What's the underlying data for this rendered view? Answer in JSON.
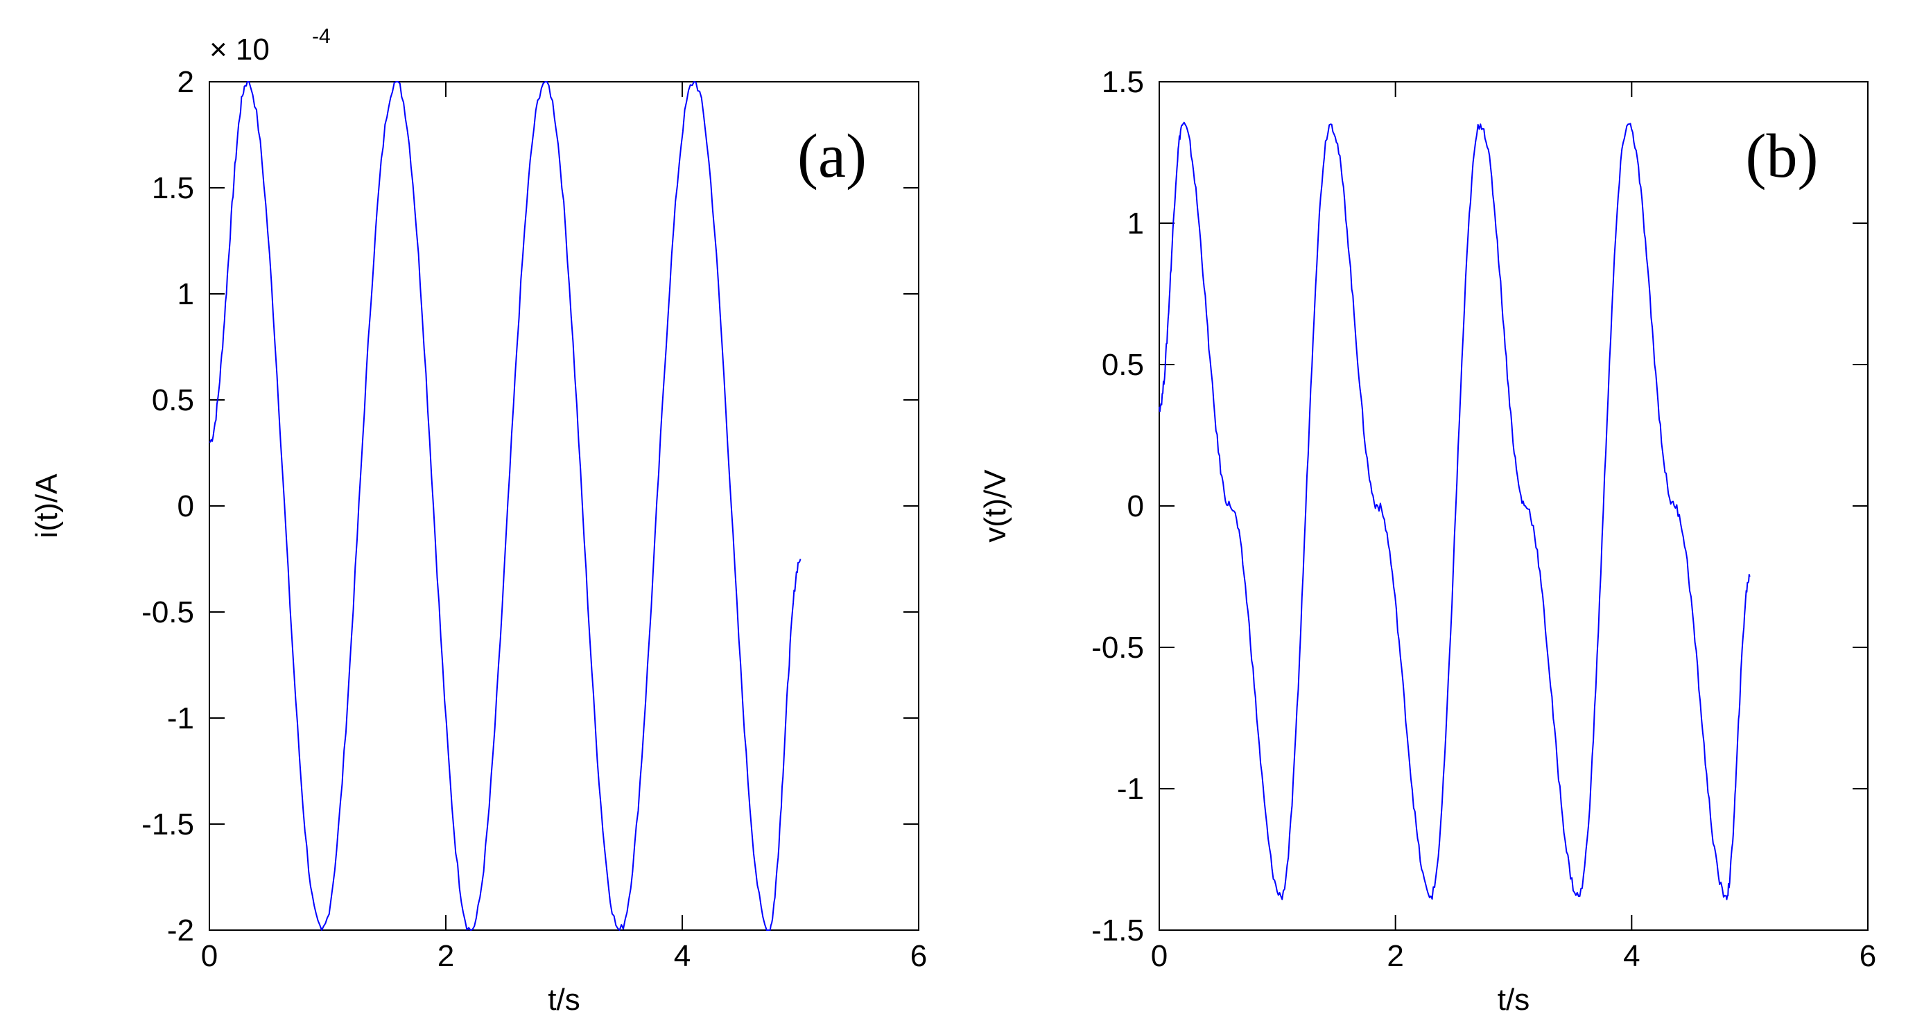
{
  "chart_data": [
    {
      "type": "line",
      "panel_label": "(a)",
      "multiplier": "× 10",
      "multiplier_exponent": "-4",
      "xlabel": "t/s",
      "ylabel": "i(t)/A",
      "xlim": [
        0,
        6
      ],
      "ylim": [
        -2,
        2
      ],
      "x_ticks": [
        0,
        2,
        4,
        6
      ],
      "x_tick_labels": [
        "0",
        "2",
        "4",
        "6"
      ],
      "y_ticks": [
        -2,
        -1.5,
        -1,
        -0.5,
        0,
        0.5,
        1,
        1.5,
        2
      ],
      "y_tick_labels": [
        "-2",
        "-1.5",
        "-1",
        "-0.5",
        "0",
        "0.5",
        "1",
        "1.5",
        "2"
      ],
      "grid": false,
      "series": [
        {
          "color": "#0000ff",
          "x": [
            0,
            0.32,
            0.95,
            1.58,
            2.21,
            2.84,
            3.47,
            4.1,
            4.73,
            5.0
          ],
          "y": [
            0.3,
            2.0,
            -2.0,
            2.0,
            -2.0,
            2.0,
            -2.0,
            2.0,
            -2.0,
            -0.25
          ]
        }
      ]
    },
    {
      "type": "line",
      "panel_label": "(b)",
      "xlabel": "t/s",
      "ylabel": "v(t)/V",
      "xlim": [
        0,
        6
      ],
      "ylim": [
        -1.5,
        1.5
      ],
      "x_ticks": [
        0,
        2,
        4,
        6
      ],
      "x_tick_labels": [
        "0",
        "2",
        "4",
        "6"
      ],
      "y_ticks": [
        -1.5,
        -1,
        -0.5,
        0,
        0.5,
        1,
        1.5
      ],
      "y_tick_labels": [
        "-1.5",
        "-1",
        "-0.5",
        "0",
        "0.5",
        "1",
        "1.5"
      ],
      "grid": false,
      "series": [
        {
          "color": "#0000ff",
          "x": [
            0,
            0.2,
            0.6,
            1.03,
            1.45,
            1.85,
            2.3,
            2.72,
            3.1,
            3.55,
            3.97,
            4.36,
            4.8,
            5.0
          ],
          "y": [
            0.35,
            1.35,
            0.0,
            -1.38,
            1.35,
            0.0,
            -1.38,
            1.35,
            0.0,
            -1.38,
            1.35,
            0.0,
            -1.38,
            -0.25
          ]
        }
      ]
    }
  ]
}
